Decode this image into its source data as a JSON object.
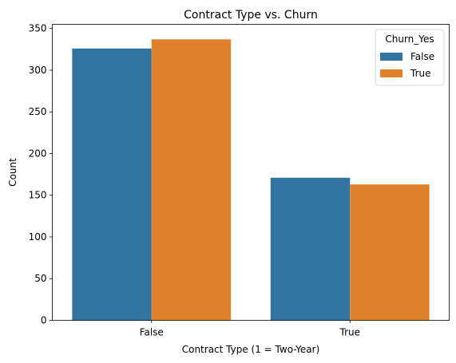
{
  "chart_data": {
    "type": "bar",
    "title": "Contract Type vs. Churn",
    "xlabel": "Contract Type (1 = Two-Year)",
    "ylabel": "Count",
    "categories": [
      "False",
      "True"
    ],
    "series": [
      {
        "name": "False",
        "color": "#3274a1",
        "values": [
          326,
          171
        ]
      },
      {
        "name": "True",
        "color": "#e1812c",
        "values": [
          337,
          163
        ]
      }
    ],
    "ylim": [
      0,
      355
    ],
    "yticks": [
      0,
      50,
      100,
      150,
      200,
      250,
      300,
      350
    ],
    "grid": false,
    "legend": {
      "title": "Churn_Yes",
      "placement": "top-right"
    }
  }
}
